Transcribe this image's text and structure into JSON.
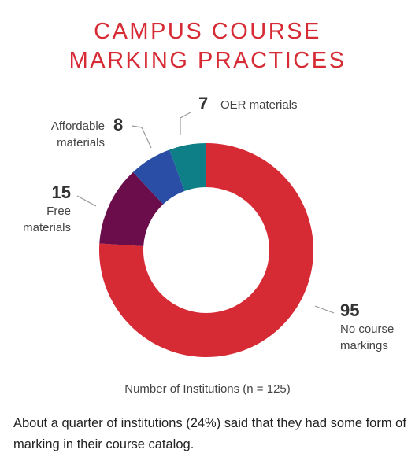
{
  "chart_data": {
    "type": "donut",
    "title": "CAMPUS COURSE MARKING PRACTICES",
    "categories": [
      "No course markings",
      "Free materials",
      "Affordable materials",
      "OER materials"
    ],
    "values": [
      95,
      15,
      8,
      7
    ],
    "colors": [
      "#d62b35",
      "#6b0d4b",
      "#2a4ea6",
      "#0e7f86"
    ],
    "caption": "Number of Institutions (n = 125)"
  },
  "footer": "About a quarter of institutions (24%) said that they had some form of marking in their course catalog."
}
